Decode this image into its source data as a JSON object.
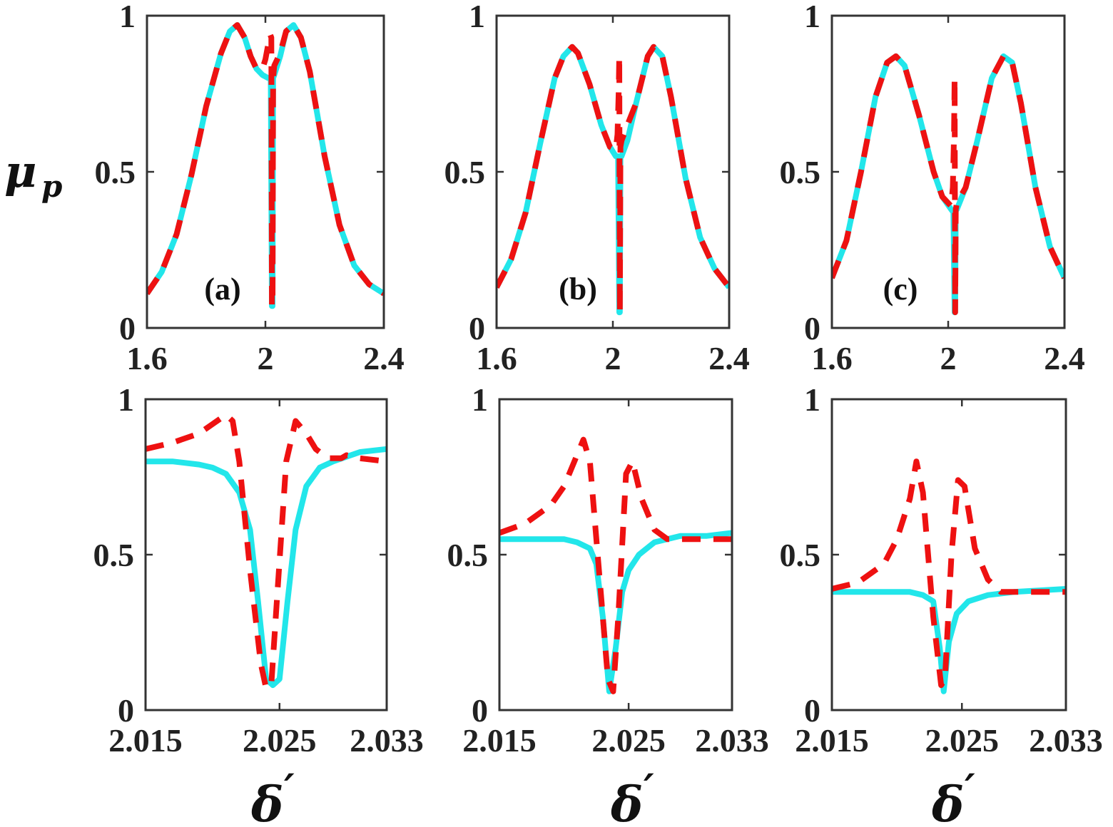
{
  "figure": {
    "ylabel_main": "μ",
    "ylabel_sub": "p",
    "xlabel_main": "δ",
    "xlabel_prime": "′"
  },
  "chart_data": [
    {
      "id": "a-top",
      "type": "line",
      "panel_label": "(a)",
      "xlim": [
        1.6,
        2.4
      ],
      "ylim": [
        0,
        1
      ],
      "xticks": [
        1.6,
        2,
        2.4
      ],
      "xtick_labels": [
        "1.6",
        "2",
        "2.4"
      ],
      "yticks": [
        0,
        0.5,
        1
      ],
      "ytick_labels": [
        "0",
        "0.5",
        "1"
      ],
      "series": [
        {
          "name": "solid",
          "color": "#22e6ea",
          "style": "solid",
          "x": [
            1.6,
            1.65,
            1.7,
            1.75,
            1.8,
            1.85,
            1.88,
            1.905,
            1.93,
            1.95,
            1.97,
            1.99,
            2.01,
            2.018,
            2.022,
            2.024,
            2.026,
            2.03,
            2.05,
            2.07,
            2.095,
            2.12,
            2.15,
            2.2,
            2.25,
            2.3,
            2.35,
            2.4
          ],
          "y": [
            0.11,
            0.18,
            0.3,
            0.49,
            0.71,
            0.88,
            0.95,
            0.97,
            0.93,
            0.87,
            0.83,
            0.81,
            0.8,
            0.8,
            0.07,
            0.07,
            0.8,
            0.81,
            0.87,
            0.95,
            0.97,
            0.93,
            0.82,
            0.55,
            0.33,
            0.2,
            0.14,
            0.11
          ]
        },
        {
          "name": "dashed",
          "color": "#ee1111",
          "style": "dashed",
          "x": [
            1.6,
            1.65,
            1.7,
            1.75,
            1.8,
            1.85,
            1.88,
            1.905,
            1.93,
            1.95,
            1.97,
            1.99,
            2.0,
            2.01,
            2.016,
            2.02,
            2.022,
            2.024,
            2.026,
            2.03,
            2.05,
            2.07,
            2.095,
            2.12,
            2.15,
            2.2,
            2.25,
            2.3,
            2.35,
            2.4
          ],
          "y": [
            0.11,
            0.18,
            0.3,
            0.49,
            0.71,
            0.88,
            0.95,
            0.97,
            0.93,
            0.87,
            0.83,
            0.83,
            0.86,
            0.91,
            0.94,
            0.93,
            0.07,
            0.07,
            0.8,
            0.84,
            0.88,
            0.95,
            0.97,
            0.93,
            0.82,
            0.55,
            0.33,
            0.2,
            0.14,
            0.11
          ]
        }
      ]
    },
    {
      "id": "b-top",
      "type": "line",
      "panel_label": "(b)",
      "xlim": [
        1.6,
        2.4
      ],
      "ylim": [
        0,
        1
      ],
      "xticks": [
        1.6,
        2,
        2.4
      ],
      "xtick_labels": [
        "1.6",
        "2",
        "2.4"
      ],
      "yticks": [
        0,
        0.5,
        1
      ],
      "ytick_labels": [
        "0",
        "0.5",
        "1"
      ],
      "series": [
        {
          "name": "solid",
          "color": "#22e6ea",
          "style": "solid",
          "x": [
            1.6,
            1.65,
            1.7,
            1.75,
            1.8,
            1.83,
            1.86,
            1.88,
            1.92,
            1.96,
            1.99,
            2.01,
            2.018,
            2.022,
            2.024,
            2.026,
            2.03,
            2.05,
            2.08,
            2.12,
            2.14,
            2.17,
            2.2,
            2.25,
            2.3,
            2.35,
            2.4
          ],
          "y": [
            0.13,
            0.22,
            0.37,
            0.59,
            0.8,
            0.87,
            0.9,
            0.88,
            0.78,
            0.65,
            0.58,
            0.55,
            0.55,
            0.05,
            0.05,
            0.55,
            0.55,
            0.6,
            0.72,
            0.87,
            0.9,
            0.87,
            0.74,
            0.48,
            0.29,
            0.19,
            0.13
          ]
        },
        {
          "name": "dashed",
          "color": "#ee1111",
          "style": "dashed",
          "x": [
            1.6,
            1.65,
            1.7,
            1.75,
            1.8,
            1.83,
            1.86,
            1.88,
            1.92,
            1.96,
            1.99,
            2.01,
            2.016,
            2.02,
            2.022,
            2.024,
            2.026,
            2.03,
            2.05,
            2.08,
            2.12,
            2.14,
            2.17,
            2.2,
            2.25,
            2.3,
            2.35,
            2.4
          ],
          "y": [
            0.13,
            0.22,
            0.37,
            0.59,
            0.8,
            0.87,
            0.9,
            0.88,
            0.78,
            0.65,
            0.58,
            0.57,
            0.62,
            0.75,
            0.87,
            0.05,
            0.58,
            0.6,
            0.65,
            0.72,
            0.87,
            0.9,
            0.87,
            0.74,
            0.48,
            0.29,
            0.19,
            0.13
          ]
        }
      ]
    },
    {
      "id": "c-top",
      "type": "line",
      "panel_label": "(c)",
      "xlim": [
        1.6,
        2.4
      ],
      "ylim": [
        0,
        1
      ],
      "xticks": [
        1.6,
        2,
        2.4
      ],
      "xtick_labels": [
        "1.6",
        "2",
        "2.4"
      ],
      "yticks": [
        0,
        0.5,
        1
      ],
      "ytick_labels": [
        "0",
        "0.5",
        "1"
      ],
      "series": [
        {
          "name": "solid",
          "color": "#22e6ea",
          "style": "solid",
          "x": [
            1.6,
            1.65,
            1.7,
            1.75,
            1.79,
            1.82,
            1.85,
            1.9,
            1.95,
            1.98,
            2.01,
            2.018,
            2.022,
            2.024,
            2.026,
            2.03,
            2.06,
            2.1,
            2.15,
            2.19,
            2.22,
            2.25,
            2.3,
            2.35,
            2.4
          ],
          "y": [
            0.16,
            0.28,
            0.5,
            0.74,
            0.85,
            0.87,
            0.84,
            0.68,
            0.5,
            0.42,
            0.38,
            0.37,
            0.05,
            0.05,
            0.38,
            0.38,
            0.45,
            0.6,
            0.8,
            0.87,
            0.85,
            0.72,
            0.45,
            0.26,
            0.16
          ]
        },
        {
          "name": "dashed",
          "color": "#ee1111",
          "style": "dashed",
          "x": [
            1.6,
            1.65,
            1.7,
            1.75,
            1.79,
            1.82,
            1.85,
            1.9,
            1.95,
            1.98,
            2.01,
            2.016,
            2.02,
            2.022,
            2.024,
            2.026,
            2.03,
            2.06,
            2.1,
            2.15,
            2.19,
            2.22,
            2.25,
            2.3,
            2.35,
            2.4
          ],
          "y": [
            0.16,
            0.28,
            0.5,
            0.74,
            0.85,
            0.87,
            0.84,
            0.68,
            0.5,
            0.42,
            0.39,
            0.45,
            0.62,
            0.8,
            0.05,
            0.38,
            0.4,
            0.45,
            0.6,
            0.8,
            0.87,
            0.85,
            0.72,
            0.45,
            0.26,
            0.16
          ]
        }
      ]
    },
    {
      "id": "a-bottom",
      "type": "line",
      "panel_label": "",
      "xlim": [
        2.015,
        2.033
      ],
      "ylim": [
        0,
        1
      ],
      "xticks": [
        2.015,
        2.025,
        2.033
      ],
      "xtick_labels": [
        "2.015",
        "2.025",
        "2.033"
      ],
      "yticks": [
        0,
        0.5,
        1
      ],
      "ytick_labels": [
        "0",
        "0.5",
        "1"
      ],
      "series": [
        {
          "name": "solid",
          "color": "#22e6ea",
          "style": "solid",
          "x": [
            2.015,
            2.017,
            2.019,
            2.02,
            2.021,
            2.022,
            2.0228,
            2.0234,
            2.024,
            2.0245,
            2.025,
            2.0256,
            2.0262,
            2.027,
            2.028,
            2.029,
            2.031,
            2.033
          ],
          "y": [
            0.8,
            0.8,
            0.79,
            0.78,
            0.76,
            0.7,
            0.58,
            0.35,
            0.1,
            0.08,
            0.1,
            0.35,
            0.58,
            0.72,
            0.78,
            0.8,
            0.83,
            0.84
          ]
        },
        {
          "name": "dashed",
          "color": "#ee1111",
          "style": "dashed",
          "x": [
            2.015,
            2.017,
            2.019,
            2.02,
            2.021,
            2.0215,
            2.022,
            2.0228,
            2.0236,
            2.024,
            2.0244,
            2.0248,
            2.0255,
            2.0262,
            2.027,
            2.0277,
            2.0286,
            2.0296,
            2.03,
            2.031,
            2.033
          ],
          "y": [
            0.84,
            0.86,
            0.89,
            0.92,
            0.95,
            0.93,
            0.8,
            0.45,
            0.15,
            0.07,
            0.09,
            0.35,
            0.8,
            0.93,
            0.89,
            0.84,
            0.81,
            0.81,
            0.82,
            0.81,
            0.8
          ]
        }
      ]
    },
    {
      "id": "b-bottom",
      "type": "line",
      "panel_label": "",
      "xlim": [
        2.015,
        2.033
      ],
      "ylim": [
        0,
        1
      ],
      "xticks": [
        2.015,
        2.025,
        2.033
      ],
      "xtick_labels": [
        "2.015",
        "2.025",
        "2.033"
      ],
      "yticks": [
        0,
        0.5,
        1
      ],
      "ytick_labels": [
        "0",
        "0.5",
        "1"
      ],
      "series": [
        {
          "name": "solid",
          "color": "#22e6ea",
          "style": "solid",
          "x": [
            2.015,
            2.018,
            2.02,
            2.021,
            2.022,
            2.0225,
            2.023,
            2.0235,
            2.024,
            2.0245,
            2.025,
            2.0258,
            2.027,
            2.029,
            2.031,
            2.033
          ],
          "y": [
            0.55,
            0.55,
            0.55,
            0.54,
            0.52,
            0.47,
            0.3,
            0.06,
            0.2,
            0.38,
            0.45,
            0.5,
            0.54,
            0.56,
            0.56,
            0.57
          ]
        },
        {
          "name": "dashed",
          "color": "#ee1111",
          "style": "dashed",
          "x": [
            2.015,
            2.017,
            2.019,
            2.02,
            2.021,
            2.0215,
            2.022,
            2.0227,
            2.0234,
            2.0238,
            2.0242,
            2.0248,
            2.0253,
            2.026,
            2.027,
            2.028,
            2.029,
            2.031,
            2.033
          ],
          "y": [
            0.57,
            0.6,
            0.66,
            0.72,
            0.82,
            0.87,
            0.8,
            0.45,
            0.1,
            0.06,
            0.3,
            0.76,
            0.8,
            0.68,
            0.58,
            0.55,
            0.55,
            0.55,
            0.55
          ]
        }
      ]
    },
    {
      "id": "c-bottom",
      "type": "line",
      "panel_label": "",
      "xlim": [
        2.015,
        2.033
      ],
      "ylim": [
        0,
        1
      ],
      "xticks": [
        2.015,
        2.025,
        2.033
      ],
      "xtick_labels": [
        "2.015",
        "2.025",
        "2.033"
      ],
      "yticks": [
        0,
        0.5,
        1
      ],
      "ytick_labels": [
        "0",
        "0.5",
        "1"
      ],
      "series": [
        {
          "name": "solid",
          "color": "#22e6ea",
          "style": "solid",
          "x": [
            2.015,
            2.018,
            2.021,
            2.022,
            2.0228,
            2.0233,
            2.0236,
            2.024,
            2.0246,
            2.0255,
            2.027,
            2.029,
            2.033
          ],
          "y": [
            0.38,
            0.38,
            0.38,
            0.37,
            0.35,
            0.2,
            0.06,
            0.22,
            0.31,
            0.35,
            0.37,
            0.38,
            0.39
          ]
        },
        {
          "name": "dashed",
          "color": "#ee1111",
          "style": "dashed",
          "x": [
            2.015,
            2.017,
            2.019,
            2.02,
            2.021,
            2.0215,
            2.022,
            2.0228,
            2.0234,
            2.0237,
            2.0242,
            2.0247,
            2.0252,
            2.026,
            2.027,
            2.028,
            2.03,
            2.033
          ],
          "y": [
            0.39,
            0.41,
            0.47,
            0.55,
            0.68,
            0.8,
            0.7,
            0.3,
            0.08,
            0.1,
            0.5,
            0.74,
            0.72,
            0.52,
            0.42,
            0.38,
            0.38,
            0.38
          ]
        }
      ]
    }
  ]
}
